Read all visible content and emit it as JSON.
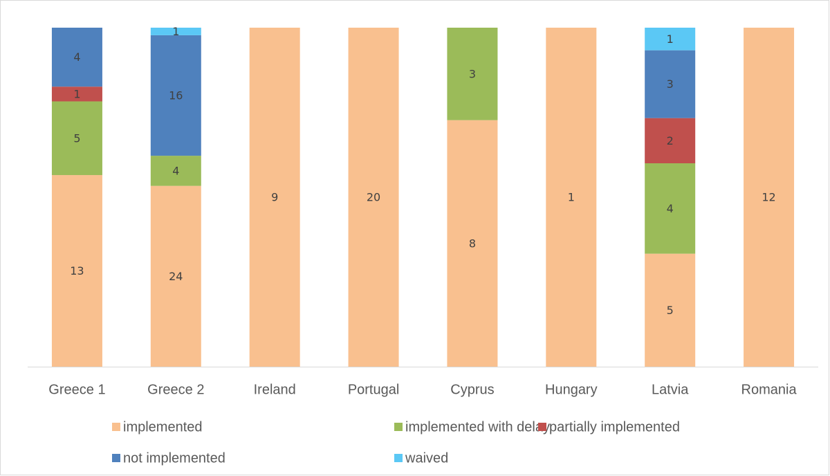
{
  "chart_data": {
    "type": "bar",
    "stacking": "percent",
    "categories": [
      "Greece 1",
      "Greece 2",
      "Ireland",
      "Portugal",
      "Cyprus",
      "Hungary",
      "Latvia",
      "Romania"
    ],
    "series": [
      {
        "name": "implemented",
        "color": "#f9c08f",
        "values": [
          13,
          24,
          9,
          20,
          8,
          1,
          5,
          12
        ]
      },
      {
        "name": "implemented with delay",
        "color": "#9bbb59",
        "values": [
          5,
          4,
          null,
          null,
          3,
          null,
          4,
          null
        ]
      },
      {
        "name": "partially implemented",
        "color": "#c0504d",
        "values": [
          1,
          null,
          null,
          null,
          null,
          null,
          2,
          null
        ]
      },
      {
        "name": "not implemented",
        "color": "#4f81bd",
        "values": [
          4,
          16,
          null,
          null,
          null,
          null,
          3,
          null
        ]
      },
      {
        "name": "waived",
        "color": "#5bc8f5",
        "values": [
          null,
          1,
          null,
          null,
          null,
          null,
          1,
          null
        ]
      }
    ],
    "legend": "bottom"
  }
}
